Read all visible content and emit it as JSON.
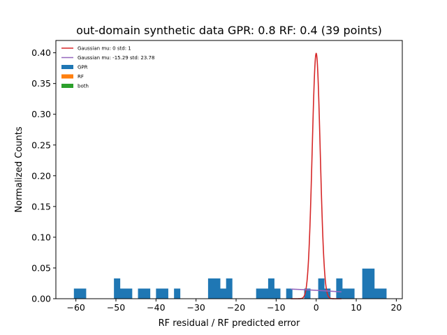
{
  "chart_data": {
    "type": "histogram",
    "title": "out-domain synthetic data GPR: 0.8 RF: 0.4 (39 points)",
    "xlabel": "RF residual / RF predicted error",
    "ylabel": "Normalized Counts",
    "xlim": [
      -65,
      21.5
    ],
    "ylim": [
      0,
      0.42
    ],
    "xticks": [
      "-60",
      "-50",
      "-40",
      "-30",
      "-20",
      "-10",
      "0",
      "10",
      "20"
    ],
    "xtick_values": [
      -60,
      -50,
      -40,
      -30,
      -20,
      -10,
      0,
      10,
      20
    ],
    "yticks": [
      "0.00",
      "0.05",
      "0.10",
      "0.15",
      "0.20",
      "0.25",
      "0.30",
      "0.35",
      "0.40"
    ],
    "ytick_values": [
      0,
      0.05,
      0.1,
      0.15,
      0.2,
      0.25,
      0.3,
      0.35,
      0.4
    ],
    "legend_position": "top-left",
    "legend": [
      {
        "label": "Gaussian mu: 0 std: 1",
        "kind": "line",
        "color": "#d62728"
      },
      {
        "label": "Gaussian mu: -15.29 std: 23.78",
        "kind": "line",
        "color": "#9467bd"
      },
      {
        "label": "GPR",
        "kind": "patch",
        "color": "#1f77b4"
      },
      {
        "label": "RF",
        "kind": "patch",
        "color": "#ff7f0e"
      },
      {
        "label": "both",
        "kind": "patch",
        "color": "#2ca02c"
      }
    ],
    "histogram": {
      "name": "GPR",
      "color": "#1f77b4",
      "bins": [
        {
          "x0": -60.5,
          "x1": -57.5,
          "y": 0.0165
        },
        {
          "x0": -50.5,
          "x1": -49.0,
          "y": 0.033
        },
        {
          "x0": -49.0,
          "x1": -46.0,
          "y": 0.0165
        },
        {
          "x0": -44.5,
          "x1": -41.5,
          "y": 0.0165
        },
        {
          "x0": -40.0,
          "x1": -37.0,
          "y": 0.0165
        },
        {
          "x0": -35.5,
          "x1": -34.0,
          "y": 0.0165
        },
        {
          "x0": -27.0,
          "x1": -24.0,
          "y": 0.033
        },
        {
          "x0": -24.0,
          "x1": -22.5,
          "y": 0.0165
        },
        {
          "x0": -22.5,
          "x1": -21.0,
          "y": 0.033
        },
        {
          "x0": -15.0,
          "x1": -12.0,
          "y": 0.0165
        },
        {
          "x0": -12.0,
          "x1": -10.5,
          "y": 0.033
        },
        {
          "x0": -10.5,
          "x1": -9.0,
          "y": 0.0165
        },
        {
          "x0": -7.5,
          "x1": -6.0,
          "y": 0.0165
        },
        {
          "x0": -3.0,
          "x1": -1.5,
          "y": 0.0165
        },
        {
          "x0": 0.5,
          "x1": 2.0,
          "y": 0.033
        },
        {
          "x0": 2.0,
          "x1": 3.5,
          "y": 0.0165
        },
        {
          "x0": 5.0,
          "x1": 6.5,
          "y": 0.033
        },
        {
          "x0": 6.5,
          "x1": 9.5,
          "y": 0.0165
        },
        {
          "x0": 11.5,
          "x1": 14.5,
          "y": 0.049
        },
        {
          "x0": 14.5,
          "x1": 17.5,
          "y": 0.0165
        }
      ]
    },
    "curves": [
      {
        "name": "Gaussian mu: 0 std: 1",
        "color": "#d62728",
        "kind": "gaussian",
        "mu": 0,
        "sigma": 1,
        "x_range": [
          -6.3,
          6.3
        ]
      },
      {
        "name": "Gaussian mu: -15.29 std: 23.78",
        "color": "#9467bd",
        "kind": "gaussian",
        "mu": -15.29,
        "sigma": 23.78,
        "x_range": [
          -6.3,
          6.3
        ]
      }
    ]
  }
}
